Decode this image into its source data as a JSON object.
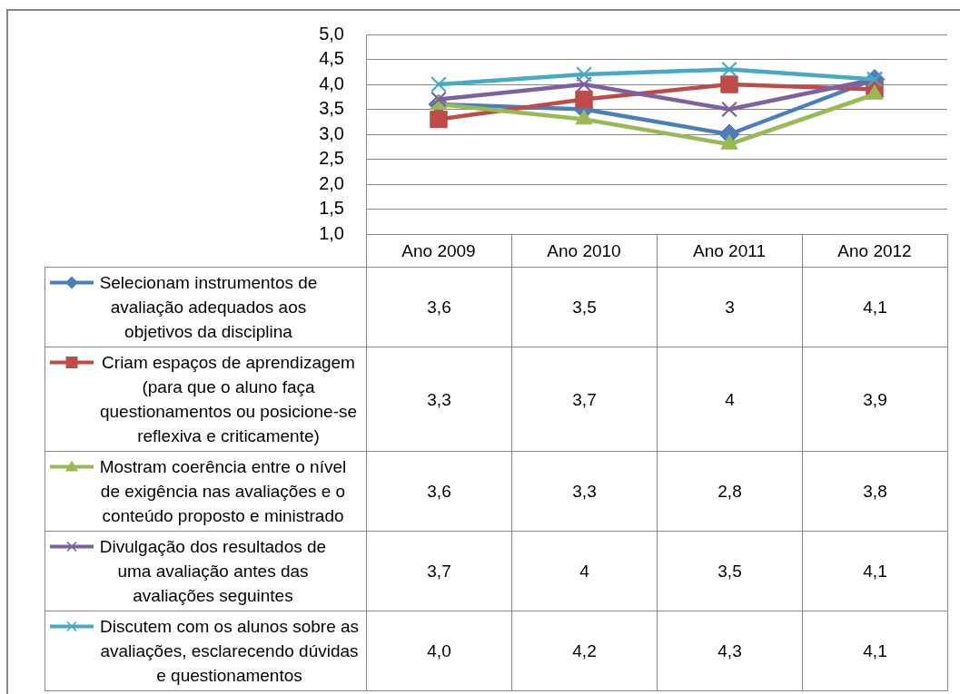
{
  "chart_data": {
    "type": "line",
    "categories": [
      "Ano 2009",
      "Ano 2010",
      "Ano 2011",
      "Ano 2012"
    ],
    "series": [
      {
        "name": "Selecionam instrumentos de avaliação adequados aos objetivos da disciplina",
        "color": "#4a7ebb",
        "marker": "diamond",
        "values": [
          3.6,
          3.5,
          3,
          4.1
        ],
        "value_labels": [
          "3,6",
          "3,5",
          "3",
          "4,1"
        ]
      },
      {
        "name": "Criam espaços de aprendizagem (para que o aluno faça questionamentos ou posicione-se reflexiva e criticamente)",
        "color": "#be4b48",
        "marker": "square",
        "values": [
          3.3,
          3.7,
          4,
          3.9
        ],
        "value_labels": [
          "3,3",
          "3,7",
          "4",
          "3,9"
        ]
      },
      {
        "name": "Mostram coerência entre o nível de exigência nas avaliações e o conteúdo proposto e ministrado",
        "color": "#98b954",
        "marker": "triangle",
        "values": [
          3.6,
          3.3,
          2.8,
          3.8
        ],
        "value_labels": [
          "3,6",
          "3,3",
          "2,8",
          "3,8"
        ]
      },
      {
        "name": "Divulgação dos resultados de uma avaliação antes das avaliações seguintes",
        "color": "#7d60a0",
        "marker": "cross",
        "values": [
          3.7,
          4,
          3.5,
          4.1
        ],
        "value_labels": [
          "3,7",
          "4",
          "3,5",
          "4,1"
        ]
      },
      {
        "name": "Discutem com os alunos sobre as avaliações, esclarecendo dúvidas e questionamentos",
        "color": "#46aac5",
        "marker": "cross",
        "values": [
          4.0,
          4.2,
          4.3,
          4.1
        ],
        "value_labels": [
          "4,0",
          "4,2",
          "4,3",
          "4,1"
        ]
      }
    ],
    "ylim": [
      1,
      5
    ],
    "yticks": [
      {
        "value": 1,
        "label": "1,0"
      },
      {
        "value": 1.5,
        "label": "1,5"
      },
      {
        "value": 2,
        "label": "2,0"
      },
      {
        "value": 2.5,
        "label": "2,5"
      },
      {
        "value": 3,
        "label": "3,0"
      },
      {
        "value": 3.5,
        "label": "3,5"
      },
      {
        "value": 4,
        "label": "4,0"
      },
      {
        "value": 4.5,
        "label": "4,5"
      },
      {
        "value": 5,
        "label": "5,0"
      }
    ],
    "grid": "y",
    "legend": "bottom",
    "line_style": "solid"
  }
}
